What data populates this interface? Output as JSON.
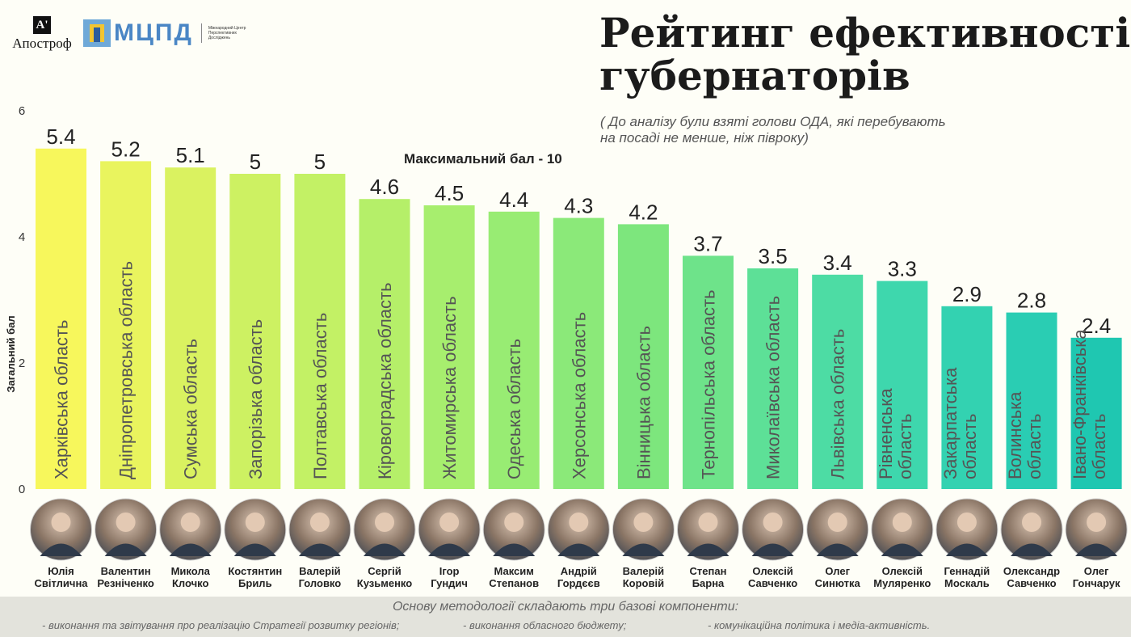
{
  "logos": {
    "apostrophe_mark": "A'",
    "apostrophe_name": "Апостроф",
    "mcpd_name": "МЦПД",
    "mcpd_full": "Міжнародний Центр Перспективних Досліджень"
  },
  "title": "Рейтинг ефективності\nгубернаторів",
  "subtitle": "( До аналізу були взяті голови ОДА, які перебувають на посаді не менше, ніж півроку)",
  "max_score": "Максимальний бал - 10",
  "chart_data": {
    "type": "bar",
    "ylabel": "Загальний бал",
    "ylim": [
      0,
      6
    ],
    "yticks": [
      0,
      2,
      4,
      6
    ],
    "grid": false,
    "categories": [
      "Харківська область",
      "Дніпропетровська область",
      "Сумська область",
      "Запорізька область",
      "Полтавська область",
      "Кіровоградська область",
      "Житомирська область",
      "Одеська область",
      "Херсонська область",
      "Вінницька область",
      "Тернопільська область",
      "Миколаївська область",
      "Львівська область",
      "Рівненська область",
      "Закарпатська область",
      "Волинська область",
      "Івано-Франківська область"
    ],
    "people": [
      "Юлія Світлична",
      "Валентин Резніченко",
      "Микола Клочко",
      "Костянтин Бриль",
      "Валерій Головко",
      "Сергій Кузьменко",
      "Ігор Гундич",
      "Максим Степанов",
      "Андрій Гордєєв",
      "Валерій Коровій",
      "Степан Барна",
      "Олексій Савченко",
      "Олег Синютка",
      "Олексій Муляренко",
      "Геннадій Москаль",
      "Олександр Савченко",
      "Олег Гончарук"
    ],
    "values": [
      5.4,
      5.2,
      5.1,
      5,
      5,
      4.6,
      4.5,
      4.4,
      4.3,
      4.2,
      3.7,
      3.5,
      3.4,
      3.3,
      2.9,
      2.8,
      2.4
    ],
    "value_labels": [
      "5.4",
      "5.2",
      "5.1",
      "5",
      "5",
      "4.6",
      "4.5",
      "4.4",
      "4.3",
      "4.2",
      "3.7",
      "3.5",
      "3.4",
      "3.3",
      "2.9",
      "2.8",
      "2.4"
    ],
    "bar_colors": [
      "#f7f75c",
      "#e9f45e",
      "#daf260",
      "#cdf162",
      "#c3f165",
      "#b5ef69",
      "#a7ee6e",
      "#98ec73",
      "#8be979",
      "#7de67d",
      "#6ee38a",
      "#5de097",
      "#4ddca4",
      "#3ed7ad",
      "#33d2b1",
      "#2acdb3",
      "#1fc7b1"
    ]
  },
  "footer": {
    "intro": "Основу методології складають три базові компоненти:",
    "components": [
      "- виконання та звітування про реалізацію Стратегії розвитку регіонів;",
      "- виконання обласного бюджету;",
      "- комунікаційна політика і медіа-активність."
    ]
  }
}
